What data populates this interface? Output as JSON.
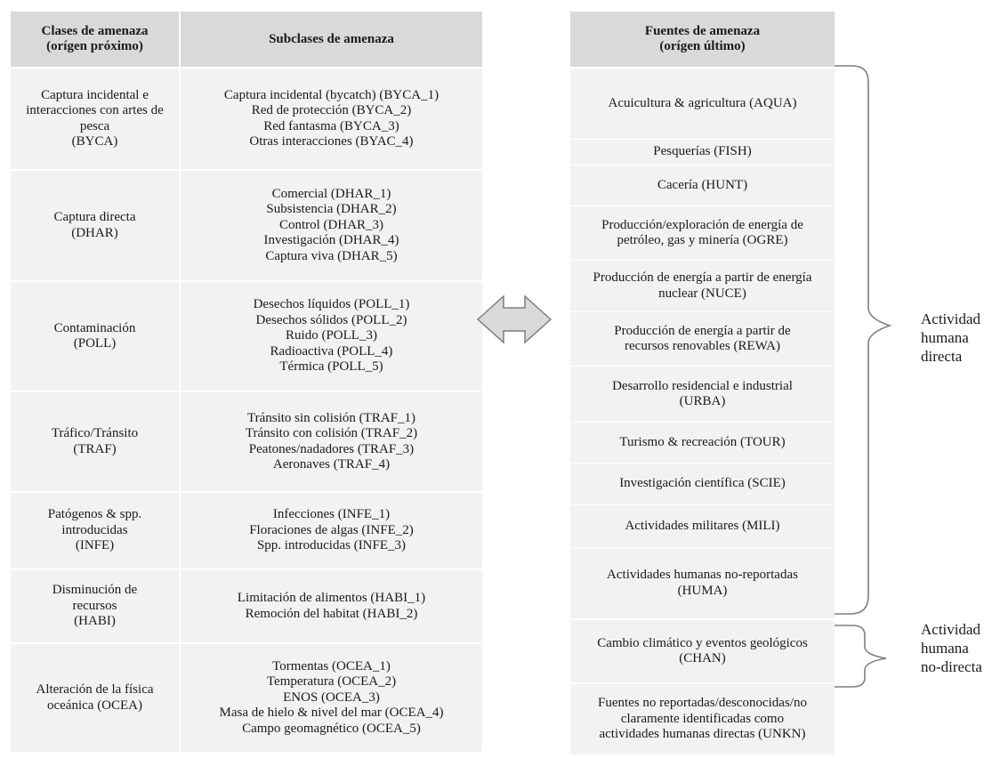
{
  "left_table": {
    "header_classes": "Clases de amenaza\n(orígen próximo)",
    "header_subclasses": "Subclases de amenaza",
    "rows": [
      {
        "class": "Captura incidental e\ninteracciones con artes de\npesca\n(BYCA)",
        "subclasses": "Captura incidental (bycatch) (BYCA_1)\nRed de protección (BYCA_2)\nRed fantasma (BYCA_3)\nOtras interacciones (BYAC_4)"
      },
      {
        "class": "Captura directa\n(DHAR)",
        "subclasses": "Comercial (DHAR_1)\nSubsistencia (DHAR_2)\nControl (DHAR_3)\nInvestigación (DHAR_4)\nCaptura viva (DHAR_5)"
      },
      {
        "class": "Contaminación\n(POLL)",
        "subclasses": "Desechos líquidos (POLL_1)\nDesechos sólidos (POLL_2)\nRuido (POLL_3)\nRadioactiva (POLL_4)\nTérmica (POLL_5)"
      },
      {
        "class": "Tráfico/Tránsito\n(TRAF)",
        "subclasses": "Tránsito sin colisión (TRAF_1)\nTránsito con colisión (TRAF_2)\nPeatones/nadadores (TRAF_3)\nAeronaves (TRAF_4)"
      },
      {
        "class": "Patógenos & spp.\nintroducidas\n(INFE)",
        "subclasses": "Infecciones (INFE_1)\nFloraciones de algas (INFE_2)\nSpp. introducidas (INFE_3)"
      },
      {
        "class": "Disminución de\nrecursos\n(HABI)",
        "subclasses": "Limitación de alimentos (HABI_1)\nRemoción del habitat (HABI_2)"
      },
      {
        "class": "Alteración de la física\noceánica (OCEA)",
        "subclasses": "Tormentas (OCEA_1)\nTemperatura (OCEA_2)\nENOS (OCEA_3)\nMasa de hielo & nivel del mar (OCEA_4)\nCampo geomagnético (OCEA_5)"
      }
    ]
  },
  "right_table": {
    "header": "Fuentes de amenaza\n(orígen último)",
    "rows": [
      "Acuicultura & agricultura (AQUA)",
      "Pesquerías (FISH)",
      "Cacería (HUNT)",
      "Producción/exploración de energía de\npetróleo, gas y minería (OGRE)",
      "Producción de energía a partir de energía\nnuclear (NUCE)",
      "Producción de energía a partir de\nrecursos renovables (REWA)",
      "Desarrollo residencial e industrial\n(URBA)",
      "Turismo & recreación (TOUR)",
      "Investigación científica (SCIE)",
      "Actividades militares (MILI)",
      "Actividades humanas no-reportadas\n(HUMA)",
      "Cambio climático y eventos geológicos\n(CHAN)",
      "Fuentes no reportadas/desconocidas/no\nclaramente identificadas como\nactividades humanas directas (UNKN)"
    ]
  },
  "brackets": {
    "direct": "Actividad\nhumana\ndirecta",
    "indirect": "Actividad\nhumana\nno-directa"
  },
  "colors": {
    "header_fill": "#d9d9d9",
    "row_fill": "#f2f2f2",
    "arrow_fill": "#d9d9d9",
    "line": "#7f7f7f"
  }
}
